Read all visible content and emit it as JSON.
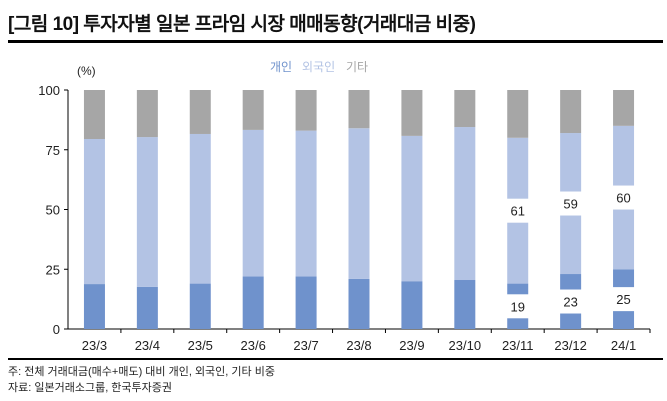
{
  "header": {
    "title": "[그림 10] 투자자별 일본 프라임 시장 매매동향(거래대금 비중)"
  },
  "footer": {
    "note": "주: 전체 거래대금(매수+매도) 대비 개인, 외국인, 기타 비중",
    "source": "자료: 일본거래소그룹, 한국투자증권"
  },
  "chart_data": {
    "type": "bar",
    "stacked": true,
    "title": "투자자별 일본 프라임 시장 매매동향(거래대금 비중)",
    "ylabel": "(%)",
    "ylim": [
      0,
      100
    ],
    "yticks": [
      "0",
      "25",
      "50",
      "75",
      "100"
    ],
    "categories": [
      "23/3",
      "23/4",
      "23/5",
      "23/6",
      "23/7",
      "23/8",
      "23/9",
      "23/10",
      "23/11",
      "23/12",
      "24/1"
    ],
    "legend_position": "top-center",
    "series": [
      {
        "name": "개인",
        "color": "#6f92cc",
        "values": [
          18.8,
          17.6,
          19,
          22,
          22,
          21,
          20,
          20.5,
          19,
          23,
          25
        ]
      },
      {
        "name": "외국인",
        "color": "#b3c3e4",
        "values": [
          60.7,
          62.7,
          62.6,
          61.3,
          61,
          63,
          60.8,
          64,
          61,
          59,
          60
        ]
      },
      {
        "name": "기타",
        "color": "#a6a6a6",
        "values": [
          20.5,
          19.7,
          18.4,
          16.7,
          17,
          16,
          19.2,
          15.5,
          20,
          18,
          15
        ]
      }
    ],
    "data_labels": [
      {
        "category": "23/11",
        "series": "개인",
        "text": "19"
      },
      {
        "category": "23/11",
        "series": "외국인",
        "text": "61"
      },
      {
        "category": "23/12",
        "series": "개인",
        "text": "23"
      },
      {
        "category": "23/12",
        "series": "외국인",
        "text": "59"
      },
      {
        "category": "24/1",
        "series": "개인",
        "text": "25"
      },
      {
        "category": "24/1",
        "series": "외국인",
        "text": "60"
      }
    ]
  }
}
